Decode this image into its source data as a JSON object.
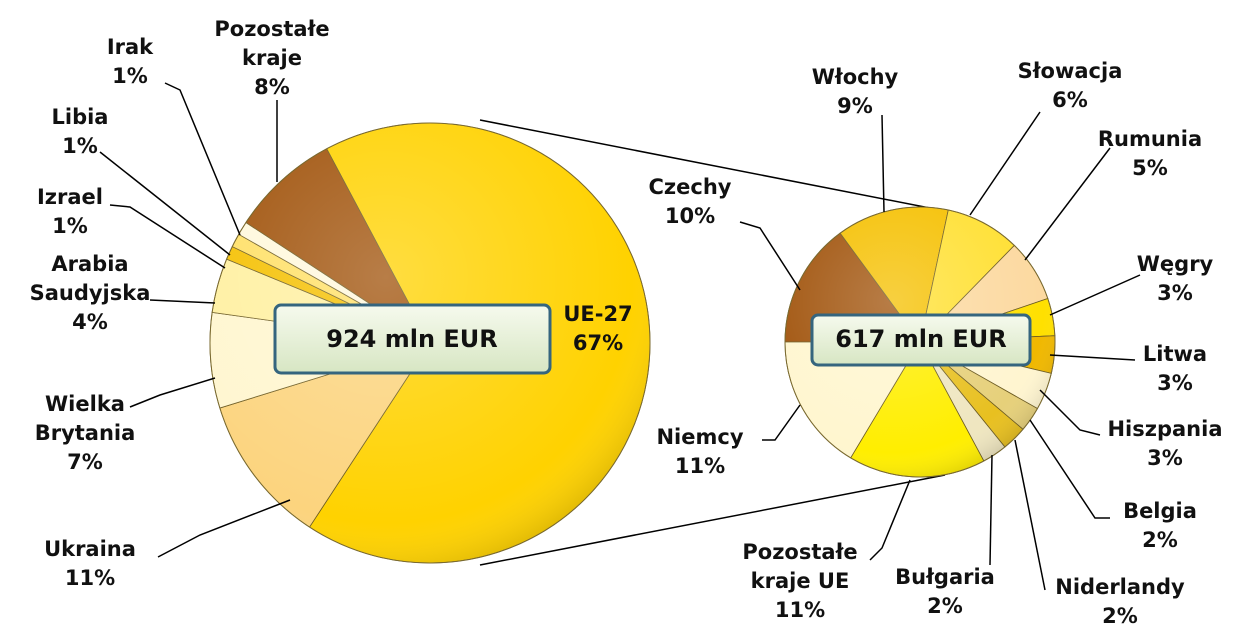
{
  "chart_data": [
    {
      "type": "pie",
      "center_label": "924 mln EUR",
      "categories": [
        [
          "UE-27"
        ],
        [
          "Ukraina"
        ],
        [
          "Wielka",
          "Brytania"
        ],
        [
          "Arabia",
          "Saudyjska"
        ],
        [
          "Izrael"
        ],
        [
          "Libia"
        ],
        [
          "Irak"
        ],
        [
          "Pozostałe",
          "kraje"
        ]
      ],
      "values": [
        67,
        11,
        7,
        4,
        1,
        1,
        1,
        8
      ],
      "value_labels": [
        "67%",
        "11%",
        "7%",
        "4%",
        "1%",
        "1%",
        "1%",
        "8%"
      ],
      "colors": [
        "#FFD200",
        "#FCD47E",
        "#FFF6CF",
        "#FFF0A0",
        "#F5C000",
        "#FFE066",
        "#FFF8DC",
        "#A0520A"
      ]
    },
    {
      "type": "pie",
      "center_label": "617 mln EUR",
      "categories": [
        [
          "Czechy"
        ],
        [
          "Włochy"
        ],
        [
          "Słowacja"
        ],
        [
          "Rumunia"
        ],
        [
          "Węgry"
        ],
        [
          "Litwa"
        ],
        [
          "Hiszpania"
        ],
        [
          "Belgia"
        ],
        [
          "Niderlandy"
        ],
        [
          "Bułgaria"
        ],
        [
          "Pozostałe",
          "kraje UE"
        ],
        [
          "Niemcy"
        ]
      ],
      "values": [
        10,
        9,
        6,
        5,
        3,
        3,
        3,
        2,
        2,
        2,
        11,
        11
      ],
      "value_labels": [
        "10%",
        "9%",
        "6%",
        "5%",
        "3%",
        "3%",
        "3%",
        "2%",
        "2%",
        "2%",
        "11%",
        "11%"
      ],
      "colors": [
        "#A0520A",
        "#F5C000",
        "#FFE033",
        "#FCD9A0",
        "#FFE000",
        "#F0B800",
        "#FFF5D0",
        "#E6D07A",
        "#E8C020",
        "#EFE6C0",
        "#FFEE00",
        "#FFF6CF"
      ]
    }
  ]
}
